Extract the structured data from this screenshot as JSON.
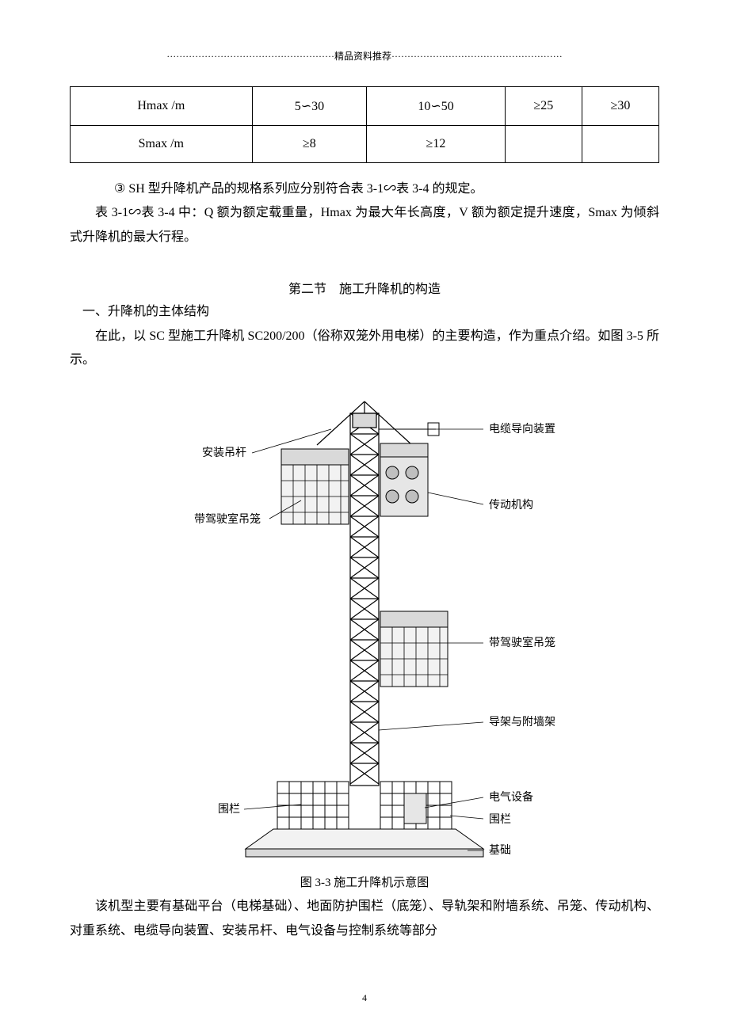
{
  "header": "·····················································精品资料推荐······················································",
  "table": {
    "columns_count": 5,
    "rows": [
      {
        "cells": [
          "Hmax /m",
          "5∽30",
          "10∽50",
          "≥25",
          "≥30"
        ]
      },
      {
        "cells": [
          "Smax /m",
          "≥8",
          "≥12",
          "",
          ""
        ]
      }
    ],
    "border_color": "#000000",
    "cell_font_size": 16
  },
  "para1": "③ SH 型升降机产品的规格系列应分别符合表 3-1∽表 3-4 的规定。",
  "para2": "表 3-1∽表 3-4 中：Q 额为额定载重量，Hmax 为最大年长高度，V 额为额定提升速度，Smax 为倾斜式升降机的最大行程。",
  "section_title": "第二节　施工升降机的构造",
  "subheading": "一、升降机的主体结构",
  "para3": "在此，以 SC 型施工升降机 SC200/200（俗称双笼外用电梯）的主要构造，作为重点介绍。如图 3-5 所示。",
  "diagram": {
    "caption": "图 3-3 施工升降机示意图",
    "labels": {
      "left1": "安装吊杆",
      "left2": "带驾驶室吊笼",
      "left3": "围栏",
      "right1": "电缆导向装置",
      "right2": "传动机构",
      "right3": "带驾驶室吊笼",
      "right4": "导架与附墙架",
      "right5": "电气设备",
      "right6": "围栏",
      "right7": "基础"
    },
    "colors": {
      "line": "#000000",
      "fill_light": "#f2f2f2",
      "fill_mid": "#d9d9d9",
      "fill_dark": "#bfbfbf",
      "background": "#ffffff"
    }
  },
  "para4": "该机型主要有基础平台（电梯基础）、地面防护围栏（底笼）、导轨架和附墙系统、吊笼、传动机构、对重系统、电缆导向装置、安装吊杆、电气设备与控制系统等部分",
  "page_number": "4"
}
